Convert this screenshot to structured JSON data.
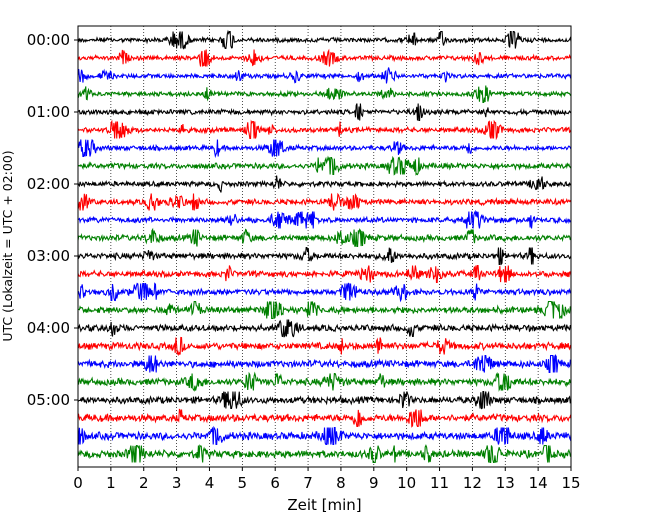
{
  "chart_data": {
    "type": "line",
    "kind": "helicorder",
    "xlabel": "Zeit  [min]",
    "ylabel": "UTC (Lokalzeit = UTC + 02:00)",
    "xlim": [
      0,
      15
    ],
    "x_ticks": [
      0,
      1,
      2,
      3,
      4,
      5,
      6,
      7,
      8,
      9,
      10,
      11,
      12,
      13,
      14,
      15
    ],
    "y_tick_labels": [
      "00:00",
      "01:00",
      "02:00",
      "03:00",
      "04:00",
      "05:00"
    ],
    "grid": "vertical dotted lines at each minute",
    "trace_interval_minutes": 15,
    "color_cycle": [
      "#000000",
      "#ff0000",
      "#0000ff",
      "#008000"
    ],
    "traces": [
      {
        "start": "00:00",
        "color": "#000000",
        "amplitude": 0.45
      },
      {
        "start": "00:15",
        "color": "#ff0000",
        "amplitude": 0.45
      },
      {
        "start": "00:30",
        "color": "#0000ff",
        "amplitude": 0.45
      },
      {
        "start": "00:45",
        "color": "#008000",
        "amplitude": 0.45
      },
      {
        "start": "01:00",
        "color": "#000000",
        "amplitude": 0.5
      },
      {
        "start": "01:15",
        "color": "#ff0000",
        "amplitude": 0.5
      },
      {
        "start": "01:30",
        "color": "#0000ff",
        "amplitude": 0.5
      },
      {
        "start": "01:45",
        "color": "#008000",
        "amplitude": 0.55
      },
      {
        "start": "02:00",
        "color": "#000000",
        "amplitude": 0.5
      },
      {
        "start": "02:15",
        "color": "#ff0000",
        "amplitude": 0.55
      },
      {
        "start": "02:30",
        "color": "#0000ff",
        "amplitude": 0.55
      },
      {
        "start": "02:45",
        "color": "#008000",
        "amplitude": 0.6
      },
      {
        "start": "03:00",
        "color": "#000000",
        "amplitude": 0.6
      },
      {
        "start": "03:15",
        "color": "#ff0000",
        "amplitude": 0.6
      },
      {
        "start": "03:30",
        "color": "#0000ff",
        "amplitude": 0.6
      },
      {
        "start": "03:45",
        "color": "#008000",
        "amplitude": 0.65
      },
      {
        "start": "04:00",
        "color": "#000000",
        "amplitude": 0.65
      },
      {
        "start": "04:15",
        "color": "#ff0000",
        "amplitude": 0.7
      },
      {
        "start": "04:30",
        "color": "#0000ff",
        "amplitude": 0.7
      },
      {
        "start": "04:45",
        "color": "#008000",
        "amplitude": 0.7
      },
      {
        "start": "05:00",
        "color": "#000000",
        "amplitude": 0.7
      },
      {
        "start": "05:15",
        "color": "#ff0000",
        "amplitude": 0.75
      },
      {
        "start": "05:30",
        "color": "#0000ff",
        "amplitude": 0.75
      },
      {
        "start": "05:45",
        "color": "#008000",
        "amplitude": 0.75
      }
    ]
  }
}
